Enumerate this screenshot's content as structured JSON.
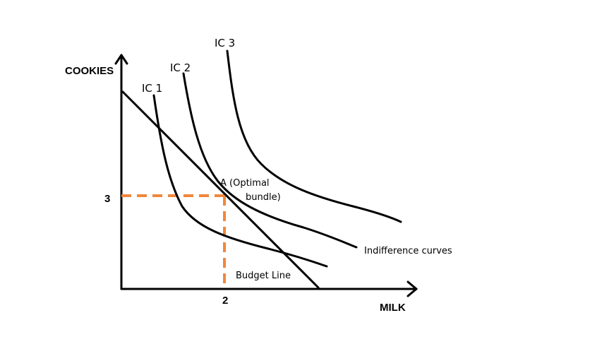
{
  "axes": {
    "y_label": "COOKIES",
    "x_label": "MILK"
  },
  "ticks": {
    "y_value": "3",
    "x_value": "2"
  },
  "curves": {
    "ic1": "IC 1",
    "ic2": "IC 2",
    "ic3": "IC 3"
  },
  "annotations": {
    "point_a_line1": "A (Optimal",
    "point_a_line2": "bundle)",
    "budget_line": "Budget Line",
    "indifference_curves": "Indifference curves"
  },
  "colors": {
    "guide": "#f0873a",
    "ink": "#000000"
  }
}
